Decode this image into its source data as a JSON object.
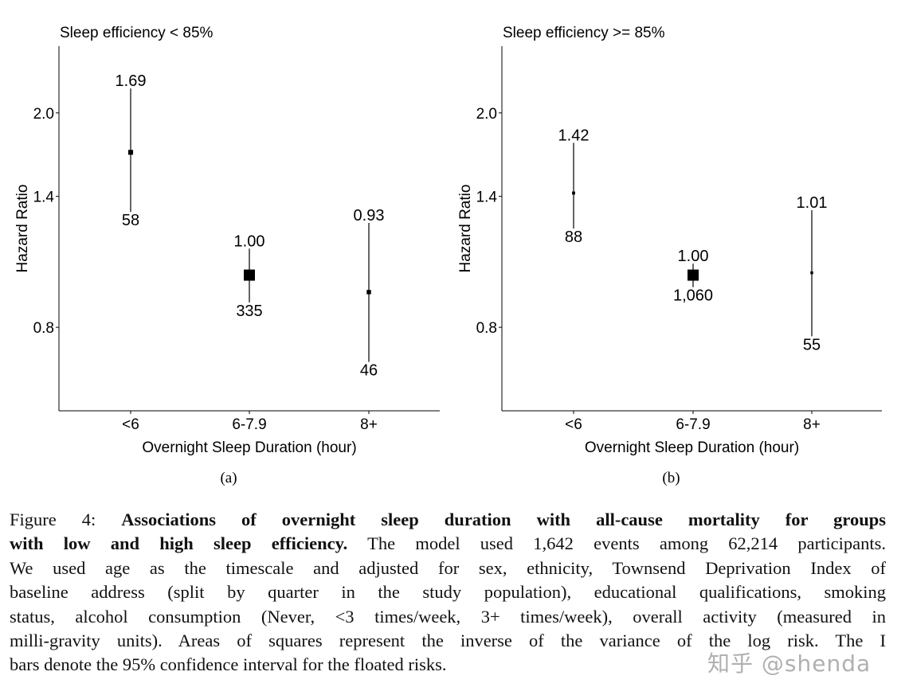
{
  "chart_data": [
    {
      "type": "scatter",
      "subtype": "forest-plot-with-error-bars",
      "title": "Sleep efficiency < 85%",
      "subcaption": "(a)",
      "xlabel": "Overnight Sleep Duration (hour)",
      "ylabel": "Hazard Ratio",
      "yscale": "log",
      "ylim": [
        0.56,
        2.66
      ],
      "yticks": [
        0.8,
        1.4,
        2.0
      ],
      "ytick_labels": [
        "0.8",
        "1.4",
        "2.0"
      ],
      "categories": [
        "<6",
        "6-7.9",
        "8+"
      ],
      "hazard_ratio": [
        1.69,
        1.0,
        0.93
      ],
      "hazard_ratio_labels": [
        "1.69",
        "1.00",
        "0.93"
      ],
      "ci_low": [
        1.31,
        0.89,
        0.69
      ],
      "ci_high": [
        2.22,
        1.12,
        1.25
      ],
      "events_labels": [
        "58",
        "335",
        "46"
      ],
      "grid": false
    },
    {
      "type": "scatter",
      "subtype": "forest-plot-with-error-bars",
      "title": "Sleep efficiency >= 85%",
      "subcaption": "(b)",
      "xlabel": "Overnight Sleep Duration (hour)",
      "ylabel": "Hazard Ratio",
      "yscale": "log",
      "ylim": [
        0.56,
        2.66
      ],
      "yticks": [
        0.8,
        1.4,
        2.0
      ],
      "ytick_labels": [
        "0.8",
        "1.4",
        "2.0"
      ],
      "categories": [
        "<6",
        "6-7.9",
        "8+"
      ],
      "hazard_ratio": [
        1.42,
        1.0,
        1.01
      ],
      "hazard_ratio_labels": [
        "1.42",
        "1.00",
        "1.01"
      ],
      "ci_low": [
        1.22,
        0.95,
        0.77
      ],
      "ci_high": [
        1.76,
        1.05,
        1.32
      ],
      "events_labels": [
        "88",
        "1,060",
        "55"
      ],
      "grid": false
    }
  ],
  "caption": {
    "lines": [
      {
        "plain": "Figure 4: ",
        "bold": "Associations of overnight sleep duration with all-cause mortality for groups",
        "rest": ""
      },
      {
        "plain": "",
        "bold": "with low and high sleep efficiency.",
        "rest": " The model used 1,642 events among 62,214 participants."
      },
      {
        "plain": "We used age as the timescale and adjusted for sex, ethnicity, Townsend Deprivation Index of",
        "bold": "",
        "rest": ""
      },
      {
        "plain": "baseline address (split by quarter in the study population), educational qualifications, smoking",
        "bold": "",
        "rest": ""
      },
      {
        "plain": "status, alcohol consumption (Never, <3 times/week, 3+ times/week), overall activity (measured in",
        "bold": "",
        "rest": ""
      },
      {
        "plain": "milli-gravity units).  Areas of squares represent the inverse of the variance of the log risk.  The I",
        "bold": "",
        "rest": ""
      },
      {
        "plain": "bars denote the 95% confidence interval for the floated risks.",
        "bold": "",
        "rest": ""
      }
    ]
  },
  "watermark": "知乎 @shenda",
  "colors": {
    "ink": "#000000",
    "watermark": "#969696"
  }
}
